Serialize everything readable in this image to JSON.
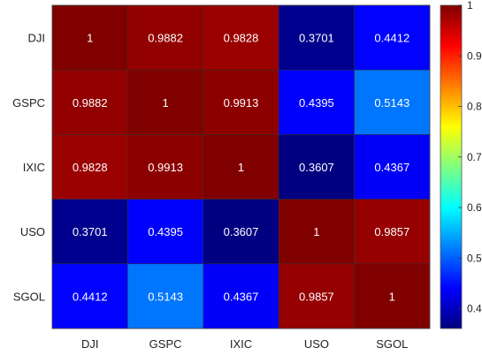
{
  "chart_data": {
    "type": "heatmap",
    "title": "",
    "xlabel": "",
    "ylabel": "",
    "x_categories": [
      "DJI",
      "GSPC",
      "IXIC",
      "USO",
      "SGOL"
    ],
    "y_categories": [
      "DJI",
      "GSPC",
      "IXIC",
      "USO",
      "SGOL"
    ],
    "values": [
      [
        1,
        0.9882,
        0.9828,
        0.3701,
        0.4412
      ],
      [
        0.9882,
        1,
        0.9913,
        0.4395,
        0.5143
      ],
      [
        0.9828,
        0.9913,
        1,
        0.3607,
        0.4367
      ],
      [
        0.3701,
        0.4395,
        0.3607,
        1,
        0.9857
      ],
      [
        0.4412,
        0.5143,
        0.4367,
        0.9857,
        1
      ]
    ],
    "cell_labels": [
      [
        "1",
        "0.9882",
        "0.9828",
        "0.3701",
        "0.4412"
      ],
      [
        "0.9882",
        "1",
        "0.9913",
        "0.4395",
        "0.5143"
      ],
      [
        "0.9828",
        "0.9913",
        "1",
        "0.3607",
        "0.4367"
      ],
      [
        "0.3701",
        "0.4395",
        "0.3607",
        "1",
        "0.9857"
      ],
      [
        "0.4412",
        "0.5143",
        "0.4367",
        "0.9857",
        "1"
      ]
    ],
    "colormap": "jet",
    "color_range": [
      0.3607,
      1
    ],
    "colorbar": {
      "placement": "right",
      "ticks": [
        0.4,
        0.5,
        0.6,
        0.7,
        0.8,
        0.9,
        1
      ],
      "tick_labels": [
        "0.4",
        "0.5",
        "0.6",
        "0.7",
        "0.8",
        "0.9",
        "1"
      ]
    }
  }
}
